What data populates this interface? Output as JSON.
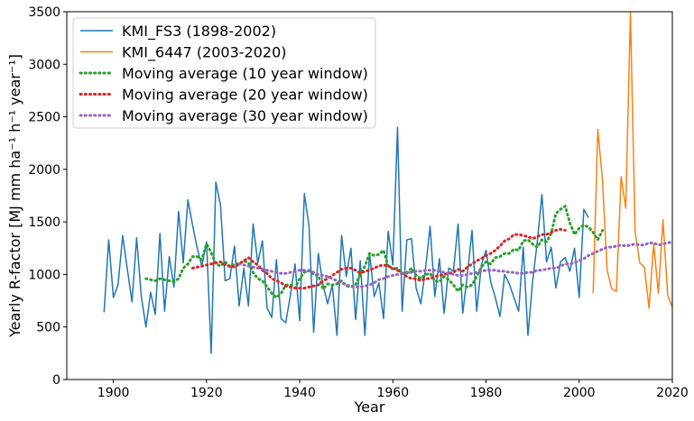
{
  "chart_data": {
    "type": "line",
    "xlabel": "Year",
    "ylabel": "Yearly R-factor [MJ mm ha⁻¹ h⁻¹ year⁻¹]",
    "xlim": [
      1890,
      2020
    ],
    "ylim": [
      0,
      3500
    ],
    "xticks": [
      1900,
      1920,
      1940,
      1960,
      1980,
      2000,
      2020
    ],
    "yticks": [
      0,
      500,
      1000,
      1500,
      2000,
      2500,
      3000,
      3500
    ],
    "grid": false,
    "legend_position": "top-left",
    "series": [
      {
        "name": "KMI_FS3 (1898-2002)",
        "color": "#1f77b4",
        "style": "solid",
        "x_start": 1898,
        "values": [
          640,
          1330,
          780,
          900,
          1370,
          1050,
          740,
          1350,
          790,
          500,
          830,
          620,
          1390,
          650,
          1170,
          880,
          1600,
          1110,
          1710,
          1470,
          1250,
          1080,
          1310,
          250,
          1880,
          1660,
          940,
          960,
          1270,
          700,
          1060,
          700,
          1480,
          1110,
          1320,
          680,
          590,
          1140,
          580,
          540,
          800,
          1100,
          560,
          1770,
          1460,
          450,
          1200,
          900,
          720,
          900,
          420,
          1370,
          980,
          1250,
          570,
          1130,
          420,
          1200,
          790,
          920,
          580,
          1410,
          1090,
          2400,
          650,
          1330,
          1340,
          870,
          720,
          1050,
          1460,
          790,
          1150,
          630,
          1060,
          1030,
          1480,
          630,
          1000,
          1420,
          650,
          1090,
          1230,
          930,
          780,
          600,
          1000,
          910,
          780,
          650,
          1260,
          420,
          930,
          1310,
          1760,
          1120,
          1260,
          870,
          1120,
          1160,
          1030,
          1250,
          780,
          1620,
          1540
        ]
      },
      {
        "name": "KMI_6447 (2003-2020)",
        "color": "#ff7f0e",
        "style": "solid",
        "x_start": 2003,
        "values": [
          820,
          2380,
          1900,
          1040,
          860,
          840,
          1930,
          1630,
          3500,
          1410,
          1110,
          1070,
          680,
          1290,
          820,
          1520,
          800,
          690
        ]
      },
      {
        "name": "Moving average (10 year window)",
        "color": "#2ca02c",
        "style": "dotted",
        "x_start": 1907,
        "values": [
          960,
          950,
          940,
          960,
          950,
          940,
          930,
          960,
          1060,
          1100,
          1170,
          1170,
          1140,
          1290,
          1210,
          1100,
          1080,
          1120,
          1070,
          1100,
          1100,
          1130,
          1110,
          1020,
          960,
          940,
          880,
          820,
          780,
          820,
          900,
          900,
          870,
          960,
          1020,
          1040,
          1000,
          990,
          860,
          910,
          900,
          910,
          940,
          890,
          880,
          900,
          1000,
          1080,
          1200,
          1180,
          1190,
          1230,
          1080,
          1050,
          1060,
          1010,
          1010,
          1060,
          990,
          960,
          1000,
          1010,
          940,
          930,
          980,
          950,
          900,
          840,
          900,
          880,
          900,
          980,
          1070,
          1120,
          1100,
          1160,
          1170,
          1200,
          1200,
          1240,
          1230,
          1320,
          1330,
          1290,
          1260,
          1330,
          1310,
          1390,
          1580,
          1620,
          1650,
          1490,
          1380,
          1440,
          1470,
          1450,
          1400,
          1330,
          1420
        ]
      },
      {
        "name": "Moving average (20 year window)",
        "color": "#d62728",
        "style": "dotted",
        "x_start": 1917,
        "values": [
          1060,
          1070,
          1080,
          1090,
          1100,
          1110,
          1120,
          1090,
          1080,
          1070,
          1100,
          1130,
          1160,
          1120,
          1090,
          1040,
          1010,
          960,
          940,
          920,
          890,
          880,
          870,
          870,
          870,
          880,
          890,
          900,
          940,
          960,
          990,
          1020,
          1050,
          1060,
          1060,
          1040,
          1010,
          1030,
          1040,
          1060,
          1080,
          1090,
          1080,
          1060,
          1040,
          1010,
          980,
          960,
          960,
          940,
          960,
          960,
          980,
          990,
          1000,
          1010,
          1020,
          1050,
          1030,
          1070,
          1100,
          1130,
          1150,
          1180,
          1200,
          1230,
          1270,
          1320,
          1340,
          1380,
          1380,
          1370,
          1360,
          1340,
          1360,
          1380,
          1380,
          1400,
          1420,
          1430,
          1420
        ]
      },
      {
        "name": "Moving average (30 year window)",
        "color": "#9467bd",
        "style": "dotted",
        "x_start": 1927,
        "values": [
          1100,
          1090,
          1080,
          1070,
          1060,
          1050,
          1040,
          1030,
          1020,
          1010,
          1010,
          1020,
          1030,
          1040,
          1040,
          1030,
          1020,
          1000,
          990,
          980,
          960,
          940,
          920,
          900,
          890,
          880,
          880,
          890,
          900,
          920,
          950,
          960,
          980,
          990,
          1000,
          1010,
          1020,
          1020,
          1030,
          1030,
          1040,
          1040,
          1040,
          1030,
          1020,
          1010,
          1000,
          990,
          990,
          1000,
          1010,
          1020,
          1030,
          1040,
          1040,
          1040,
          1030,
          1030,
          1020,
          1020,
          1010,
          1010,
          1020,
          1020,
          1040,
          1040,
          1050,
          1060,
          1060,
          1080,
          1100,
          1100,
          1110,
          1130,
          1150,
          1180,
          1200,
          1220,
          1240,
          1260,
          1260,
          1270,
          1280,
          1270,
          1280,
          1290,
          1280,
          1280,
          1300,
          1300,
          1280,
          1290,
          1300,
          1310
        ]
      }
    ]
  }
}
